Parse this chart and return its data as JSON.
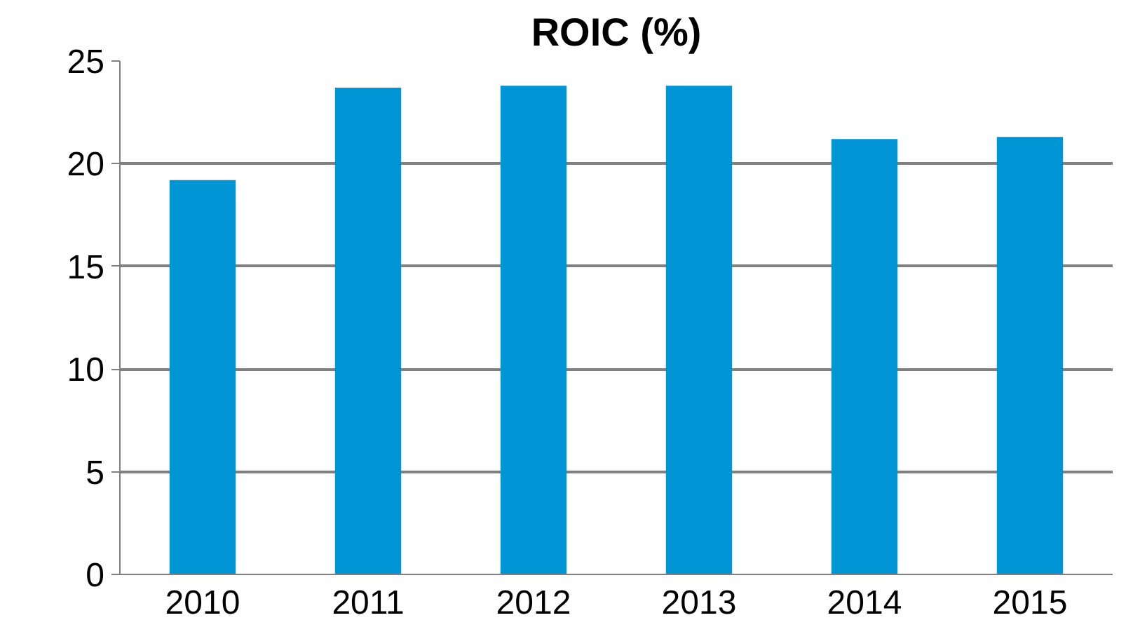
{
  "chart_data": {
    "type": "bar",
    "title": "ROIC (%)",
    "categories": [
      "2010",
      "2011",
      "2012",
      "2013",
      "2014",
      "2015"
    ],
    "values": [
      19.2,
      23.7,
      23.8,
      23.8,
      21.2,
      21.3
    ],
    "color": "#0096d6",
    "ylim": [
      0,
      25
    ],
    "yticks": [
      0,
      5,
      10,
      15,
      20,
      25
    ],
    "grid": "y"
  }
}
